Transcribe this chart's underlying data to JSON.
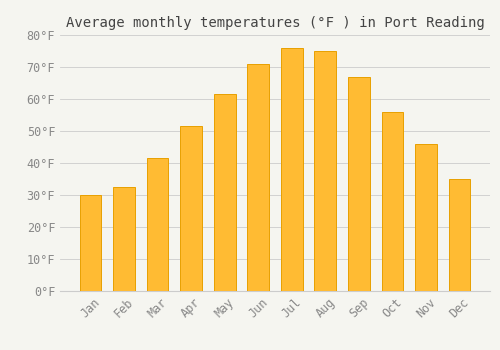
{
  "title": "Average monthly temperatures (°F ) in Port Reading",
  "months": [
    "Jan",
    "Feb",
    "Mar",
    "Apr",
    "May",
    "Jun",
    "Jul",
    "Aug",
    "Sep",
    "Oct",
    "Nov",
    "Dec"
  ],
  "values": [
    30,
    32.5,
    41.5,
    51.5,
    61.5,
    71,
    76,
    75,
    67,
    56,
    46,
    35
  ],
  "bar_color": "#FFBB33",
  "bar_edge_color": "#E8A000",
  "background_color": "#F5F5F0",
  "grid_color": "#CCCCCC",
  "text_color": "#888888",
  "title_color": "#444444",
  "ylim": [
    0,
    80
  ],
  "yticks": [
    0,
    10,
    20,
    30,
    40,
    50,
    60,
    70,
    80
  ],
  "title_fontsize": 10,
  "tick_fontsize": 8.5
}
